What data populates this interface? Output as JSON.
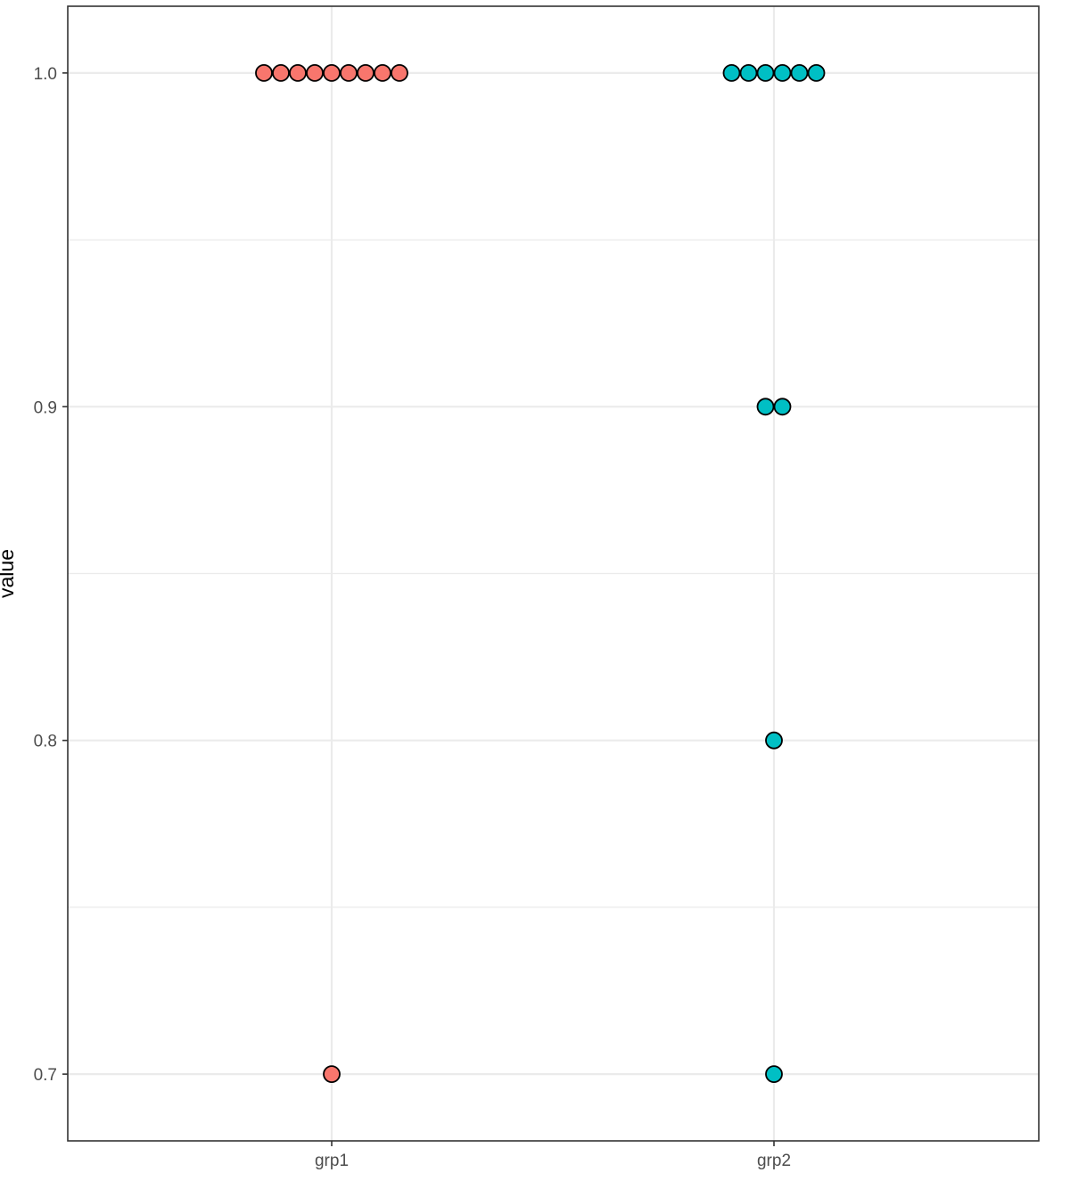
{
  "chart_data": {
    "type": "scatter",
    "subtype": "dotplot",
    "title": "",
    "xlabel": "",
    "ylabel": "value",
    "categories": [
      "grp1",
      "grp2"
    ],
    "ylim": [
      0.68,
      1.02
    ],
    "yticks": [
      0.7,
      0.8,
      0.9,
      1.0
    ],
    "ytick_labels": [
      "0.7",
      "0.8",
      "0.9",
      "1.0"
    ],
    "grid": true,
    "legend": "none",
    "series": [
      {
        "category": "grp1",
        "color": "#F8766D",
        "values": [
          1.0,
          1.0,
          1.0,
          1.0,
          1.0,
          1.0,
          1.0,
          1.0,
          1.0,
          0.7
        ]
      },
      {
        "category": "grp2",
        "color": "#00BFC4",
        "values": [
          1.0,
          1.0,
          1.0,
          1.0,
          1.0,
          1.0,
          0.9,
          0.9,
          0.8,
          0.7
        ]
      }
    ]
  },
  "colors": {
    "panel_border": "#333333",
    "grid": "#ebebeb",
    "point_outline": "#000000"
  }
}
